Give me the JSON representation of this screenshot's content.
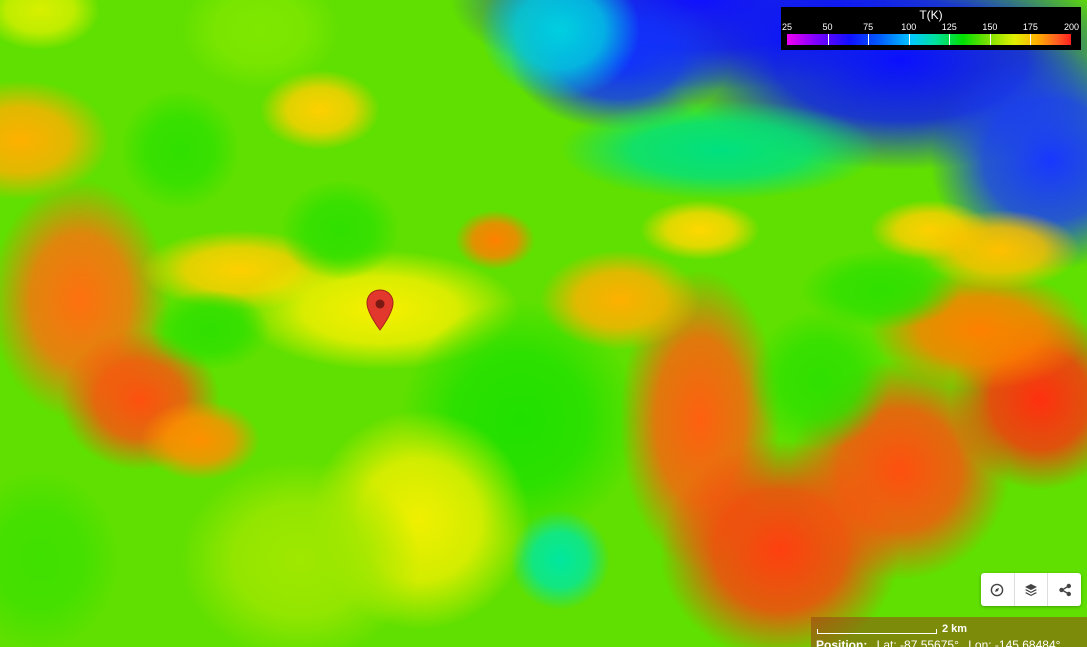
{
  "legend": {
    "title": "T(K)",
    "ticks": [
      "25",
      "50",
      "75",
      "100",
      "125",
      "150",
      "175",
      "200"
    ],
    "range": [
      25,
      200
    ]
  },
  "scale": {
    "label": "2 km"
  },
  "position": {
    "label": "Position:",
    "lat": "Lat: -87.55675°",
    "lon": "Lon: -145.68484°"
  },
  "controls": {
    "icons": [
      "compass-icon",
      "layers-icon",
      "share-icon"
    ]
  },
  "marker": {
    "icon": "map-pin-icon",
    "color": "#e1372c"
  },
  "colors": {
    "legend_background": "#000000",
    "control_background": "#ffffff",
    "info_bar": "#964614"
  }
}
